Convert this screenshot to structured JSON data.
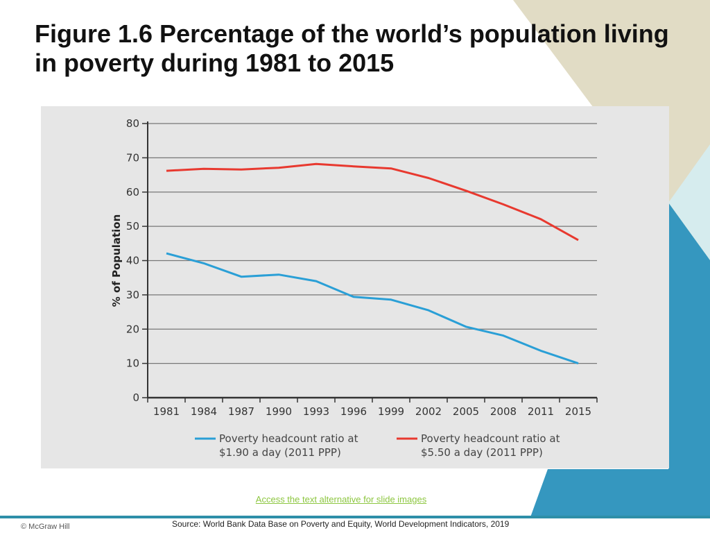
{
  "slide": {
    "title": "Figure 1.6 Percentage of the world’s population living in poverty during 1981 to 2015",
    "access_link": "Access the text alternative for slide images",
    "copyright": "© McGraw Hill",
    "source": "Source: World Bank Data Base on Poverty and Equity, World Development Indicators, 2019"
  },
  "colors": {
    "beige": "#e1dcc5",
    "light_teal": "#d6ecee",
    "teal": "#3597bf",
    "bar": "#2e8fa8",
    "link": "#8cc63f"
  },
  "chart_data": {
    "type": "line",
    "ylabel": "% of Population",
    "xlabel": "",
    "ylim": [
      0,
      80
    ],
    "yticks": [
      "0",
      "10",
      "20",
      "30",
      "40",
      "50",
      "60",
      "70",
      "80"
    ],
    "categories": [
      "1981",
      "1984",
      "1987",
      "1990",
      "1993",
      "1996",
      "1999",
      "2002",
      "2005",
      "2008",
      "2011",
      "2015"
    ],
    "grid": true,
    "legend_position": "bottom",
    "series": [
      {
        "name": "Poverty headcount ratio at $1.90 a day (2011 PPP)",
        "legend_lines": [
          "Poverty headcount ratio at",
          "$1.90 a day (2011 PPP)"
        ],
        "color": "#2a9fd6",
        "values": [
          42.1,
          39.2,
          35.3,
          35.9,
          34.0,
          29.4,
          28.6,
          25.5,
          20.7,
          18.1,
          13.7,
          10.0
        ]
      },
      {
        "name": "Poverty headcount ratio at $5.50 a day (2011 PPP)",
        "legend_lines": [
          "Poverty headcount ratio at",
          "$5.50 a day (2011 PPP)"
        ],
        "color": "#e8392f",
        "values": [
          66.2,
          66.8,
          66.6,
          67.1,
          68.2,
          67.5,
          66.9,
          64.1,
          60.4,
          56.4,
          52.1,
          46.0
        ]
      }
    ]
  }
}
